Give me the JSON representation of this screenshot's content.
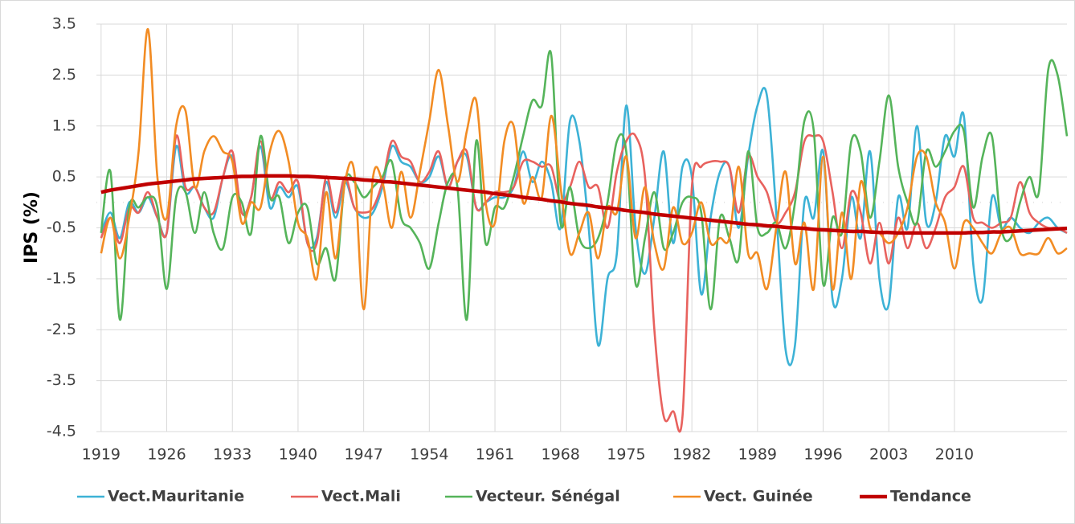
{
  "chart_data": {
    "type": "line",
    "y_label": "IPS (%)",
    "x": [
      1919,
      1920,
      1921,
      1922,
      1923,
      1924,
      1925,
      1926,
      1927,
      1928,
      1929,
      1930,
      1931,
      1932,
      1933,
      1934,
      1935,
      1936,
      1937,
      1938,
      1939,
      1940,
      1941,
      1942,
      1943,
      1944,
      1945,
      1946,
      1947,
      1948,
      1949,
      1950,
      1951,
      1952,
      1953,
      1954,
      1955,
      1956,
      1957,
      1958,
      1959,
      1960,
      1961,
      1962,
      1963,
      1964,
      1965,
      1966,
      1967,
      1968,
      1969,
      1970,
      1971,
      1972,
      1973,
      1974,
      1975,
      1976,
      1977,
      1978,
      1979,
      1980,
      1981,
      1982,
      1983,
      1984,
      1985,
      1986,
      1987,
      1988,
      1989,
      1990,
      1991,
      1992,
      1993,
      1994,
      1995,
      1996,
      1997,
      1998,
      1999,
      2000,
      2001,
      2002,
      2003,
      2004,
      2005,
      2006,
      2007,
      2008,
      2009,
      2010,
      2011,
      2012,
      2013,
      2014,
      2015,
      2016,
      2017,
      2018,
      2019,
      2020,
      2021,
      2022
    ],
    "xlim": [
      1918.5,
      2022
    ],
    "xticks": [
      1919,
      1926,
      1933,
      1940,
      1947,
      1954,
      1961,
      1968,
      1975,
      1982,
      1989,
      1996,
      2003,
      2010
    ],
    "ylim": [
      -4.5,
      3.5
    ],
    "yticks": [
      -4.5,
      -3.5,
      -2.5,
      -1.5,
      -0.5,
      0.5,
      1.5,
      2.5,
      3.5
    ],
    "grid": true,
    "legend": "bottom",
    "series": [
      {
        "name": "Vect.Mauritanie",
        "color": "#3db2d6",
        "values": [
          -0.6,
          -0.2,
          -0.7,
          0.0,
          -0.2,
          0.1,
          -0.3,
          -0.6,
          1.1,
          0.2,
          0.3,
          -0.1,
          -0.3,
          0.5,
          0.9,
          -0.2,
          0.1,
          1.1,
          -0.1,
          0.3,
          0.1,
          0.3,
          -0.8,
          -0.7,
          0.4,
          -0.3,
          0.4,
          -0.1,
          -0.3,
          -0.2,
          0.3,
          1.1,
          0.8,
          0.7,
          0.4,
          0.5,
          0.9,
          0.3,
          0.8,
          0.9,
          -0.1,
          0.0,
          0.1,
          0.1,
          0.3,
          1.0,
          0.4,
          0.8,
          0.4,
          -0.5,
          1.6,
          1.2,
          -0.5,
          -2.8,
          -1.5,
          -1.0,
          1.9,
          -0.5,
          -1.4,
          -0.3,
          1.0,
          -0.8,
          0.7,
          0.5,
          -1.8,
          -0.3,
          0.6,
          0.7,
          -0.5,
          0.9,
          1.9,
          2.1,
          -0.2,
          -2.9,
          -2.8,
          0.0,
          -0.3,
          1.0,
          -1.9,
          -1.5,
          0.1,
          -0.7,
          1.0,
          -1.5,
          -2.0,
          0.1,
          -0.5,
          1.5,
          -0.4,
          0.0,
          1.3,
          0.9,
          1.7,
          -1.2,
          -1.9,
          0.1,
          -0.5,
          -0.3,
          -0.5,
          -0.6,
          -0.4,
          -0.3,
          -0.5,
          -0.6
        ]
      },
      {
        "name": "Vect.Mali",
        "color": "#e8625e",
        "values": [
          -0.7,
          -0.3,
          -0.8,
          -0.1,
          -0.2,
          0.2,
          -0.3,
          -0.6,
          1.3,
          0.3,
          0.3,
          -0.1,
          -0.2,
          0.5,
          1.0,
          -0.2,
          0.1,
          1.2,
          0.1,
          0.4,
          0.2,
          0.4,
          -0.8,
          -0.8,
          0.5,
          -0.2,
          0.5,
          -0.1,
          -0.2,
          -0.1,
          0.4,
          1.2,
          0.9,
          0.8,
          0.4,
          0.6,
          1.0,
          0.3,
          0.8,
          1.0,
          -0.1,
          0.0,
          0.2,
          0.2,
          0.3,
          0.8,
          0.8,
          0.7,
          0.7,
          0.0,
          0.3,
          0.8,
          0.3,
          0.3,
          -0.5,
          0.6,
          1.2,
          1.3,
          0.5,
          -2.5,
          -4.2,
          -4.1,
          -4.2,
          0.3,
          0.7,
          0.8,
          0.8,
          0.7,
          -0.2,
          0.9,
          0.5,
          0.2,
          -0.4,
          -0.2,
          0.2,
          1.2,
          1.3,
          1.2,
          0.2,
          -0.9,
          0.2,
          -0.2,
          -1.2,
          -0.4,
          -1.2,
          -0.3,
          -0.9,
          -0.4,
          -0.9,
          -0.5,
          0.1,
          0.3,
          0.7,
          -0.3,
          -0.4,
          -0.5,
          -0.4,
          -0.3,
          0.4,
          -0.2,
          -0.4,
          -0.5,
          -0.5,
          -0.6
        ]
      },
      {
        "name": "Vecteur. Sénégal",
        "color": "#55b45a",
        "values": [
          -0.6,
          0.6,
          -2.3,
          -0.1,
          -0.1,
          0.1,
          -0.1,
          -1.7,
          0.1,
          0.2,
          -0.6,
          0.2,
          -0.6,
          -0.9,
          0.1,
          0.0,
          -0.6,
          1.3,
          0.1,
          0.1,
          -0.8,
          -0.2,
          -0.1,
          -1.2,
          -0.9,
          -1.5,
          0.4,
          0.4,
          0.1,
          0.3,
          0.5,
          0.8,
          -0.3,
          -0.5,
          -0.8,
          -1.3,
          -0.4,
          0.4,
          0.3,
          -2.3,
          1.2,
          -0.8,
          -0.1,
          -0.1,
          0.5,
          1.3,
          2.0,
          1.9,
          2.9,
          -0.4,
          0.3,
          -0.7,
          -0.9,
          -0.7,
          0.0,
          1.2,
          1.0,
          -1.6,
          -0.7,
          0.2,
          -0.9,
          -0.6,
          0.0,
          0.1,
          -0.2,
          -2.1,
          -0.3,
          -0.7,
          -1.1,
          1.0,
          -0.5,
          -0.6,
          -0.4,
          -0.9,
          0.0,
          1.6,
          1.4,
          -1.6,
          -0.3,
          -0.6,
          1.2,
          1.0,
          -0.3,
          0.8,
          2.1,
          0.7,
          0.0,
          -0.4,
          1.0,
          0.7,
          1.0,
          1.4,
          1.4,
          -0.1,
          0.9,
          1.3,
          -0.5,
          -0.7,
          0.0,
          0.5,
          0.2,
          2.6,
          2.5,
          1.3
        ]
      },
      {
        "name": "Vect. Guinée",
        "color": "#f28c24",
        "values": [
          -1.0,
          -0.3,
          -1.1,
          -0.3,
          1.0,
          3.4,
          0.5,
          -0.3,
          1.5,
          1.8,
          0.3,
          1.0,
          1.3,
          1.0,
          0.8,
          -0.4,
          0.0,
          -0.1,
          1.0,
          1.4,
          0.8,
          -0.4,
          -0.7,
          -1.5,
          0.2,
          -1.1,
          0.4,
          0.6,
          -2.1,
          0.5,
          0.4,
          -0.5,
          0.6,
          -0.3,
          0.6,
          1.6,
          2.6,
          1.5,
          0.4,
          1.4,
          2.0,
          0.0,
          -0.4,
          1.2,
          1.5,
          0.0,
          0.5,
          0.1,
          1.7,
          0.3,
          -1.0,
          -0.6,
          -0.2,
          -1.1,
          -0.1,
          -0.2,
          0.9,
          -0.7,
          0.3,
          -0.8,
          -1.3,
          -0.1,
          -0.8,
          -0.6,
          0.0,
          -0.8,
          -0.7,
          -0.7,
          0.7,
          -1.0,
          -1.0,
          -1.7,
          -0.5,
          0.6,
          -1.2,
          -0.4,
          -1.7,
          0.9,
          -1.7,
          -0.2,
          -1.5,
          0.4,
          -0.5,
          -0.6,
          -0.8,
          -0.6,
          -0.1,
          0.9,
          0.9,
          0.0,
          -0.4,
          -1.3,
          -0.4,
          -0.5,
          -0.8,
          -1.0,
          -0.6,
          -0.5,
          -1.0,
          -1.0,
          -1.0,
          -0.7,
          -1.0,
          -0.9
        ]
      },
      {
        "name": "Tendance",
        "color": "#c00000",
        "values": [
          0.2,
          0.24,
          0.27,
          0.3,
          0.33,
          0.36,
          0.38,
          0.4,
          0.42,
          0.44,
          0.46,
          0.47,
          0.48,
          0.49,
          0.5,
          0.51,
          0.51,
          0.52,
          0.52,
          0.52,
          0.52,
          0.51,
          0.51,
          0.5,
          0.49,
          0.48,
          0.47,
          0.46,
          0.44,
          0.43,
          0.41,
          0.4,
          0.38,
          0.36,
          0.34,
          0.32,
          0.3,
          0.28,
          0.26,
          0.24,
          0.22,
          0.2,
          0.17,
          0.15,
          0.13,
          0.1,
          0.08,
          0.06,
          0.03,
          0.01,
          -0.02,
          -0.04,
          -0.06,
          -0.09,
          -0.11,
          -0.13,
          -0.16,
          -0.18,
          -0.2,
          -0.23,
          -0.25,
          -0.27,
          -0.29,
          -0.31,
          -0.33,
          -0.35,
          -0.37,
          -0.39,
          -0.41,
          -0.43,
          -0.44,
          -0.46,
          -0.47,
          -0.49,
          -0.5,
          -0.51,
          -0.53,
          -0.54,
          -0.55,
          -0.56,
          -0.57,
          -0.57,
          -0.58,
          -0.59,
          -0.59,
          -0.6,
          -0.6,
          -0.6,
          -0.6,
          -0.6,
          -0.6,
          -0.6,
          -0.6,
          -0.59,
          -0.59,
          -0.58,
          -0.58,
          -0.57,
          -0.56,
          -0.55,
          -0.54,
          -0.53,
          -0.52,
          -0.51
        ]
      }
    ]
  }
}
